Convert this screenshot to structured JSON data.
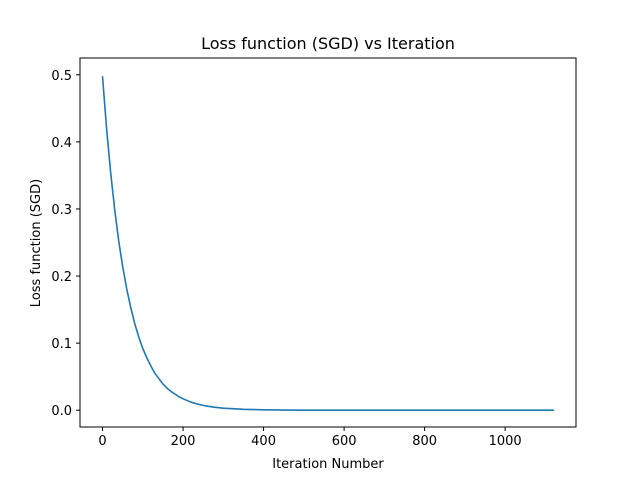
{
  "chart_data": {
    "type": "line",
    "title": "Loss function (SGD) vs Iteration",
    "xlabel": "Iteration Number",
    "ylabel": "Loss function (SGD)",
    "xlim": [
      -56,
      1176
    ],
    "ylim": [
      -0.025,
      0.525
    ],
    "xticks": [
      0,
      200,
      400,
      600,
      800,
      1000
    ],
    "yticks": [
      0.0,
      0.1,
      0.2,
      0.3,
      0.4,
      0.5
    ],
    "xtick_labels": [
      "0",
      "200",
      "400",
      "600",
      "800",
      "1000"
    ],
    "ytick_labels": [
      "0.0",
      "0.1",
      "0.2",
      "0.3",
      "0.4",
      "0.5"
    ],
    "grid": false,
    "legend": "none",
    "series": [
      {
        "color": "#1f77b4",
        "x": [
          0,
          10,
          20,
          30,
          40,
          50,
          60,
          70,
          80,
          90,
          100,
          110,
          120,
          130,
          140,
          150,
          160,
          170,
          180,
          190,
          200,
          220,
          240,
          260,
          280,
          300,
          350,
          400,
          450,
          500,
          600,
          700,
          800,
          900,
          1000,
          1120
        ],
        "y": [
          0.497,
          0.42,
          0.355,
          0.3,
          0.253,
          0.214,
          0.181,
          0.153,
          0.129,
          0.109,
          0.092,
          0.078,
          0.066,
          0.055,
          0.047,
          0.039,
          0.033,
          0.028,
          0.024,
          0.02,
          0.017,
          0.012,
          0.0085,
          0.006,
          0.0043,
          0.003,
          0.0014,
          0.0006,
          0.0003,
          0.0001,
          3e-05,
          1e-05,
          0.0,
          0.0,
          0.0,
          0.0
        ]
      }
    ]
  }
}
